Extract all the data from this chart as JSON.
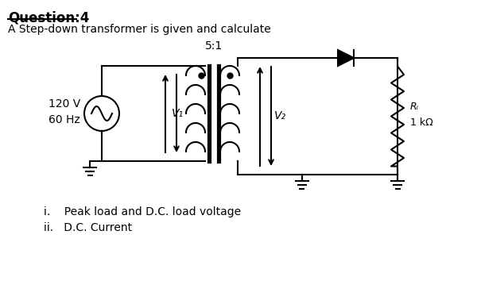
{
  "title": "Question:4",
  "subtitle": "A Step-down transformer is given and calculate",
  "transformer_ratio": "5:1",
  "source_voltage": "120 V",
  "source_freq": "60 Hz",
  "v1_label": "V₁",
  "v2_label": "V₂",
  "rl_label": "Rₗ",
  "rl_value": "1 kΩ",
  "question_items": [
    "i.    Peak load and D.C. load voltage",
    "ii.   D.C. Current"
  ],
  "bg_color": "#ffffff",
  "line_color": "#000000",
  "title_color": "#000000"
}
